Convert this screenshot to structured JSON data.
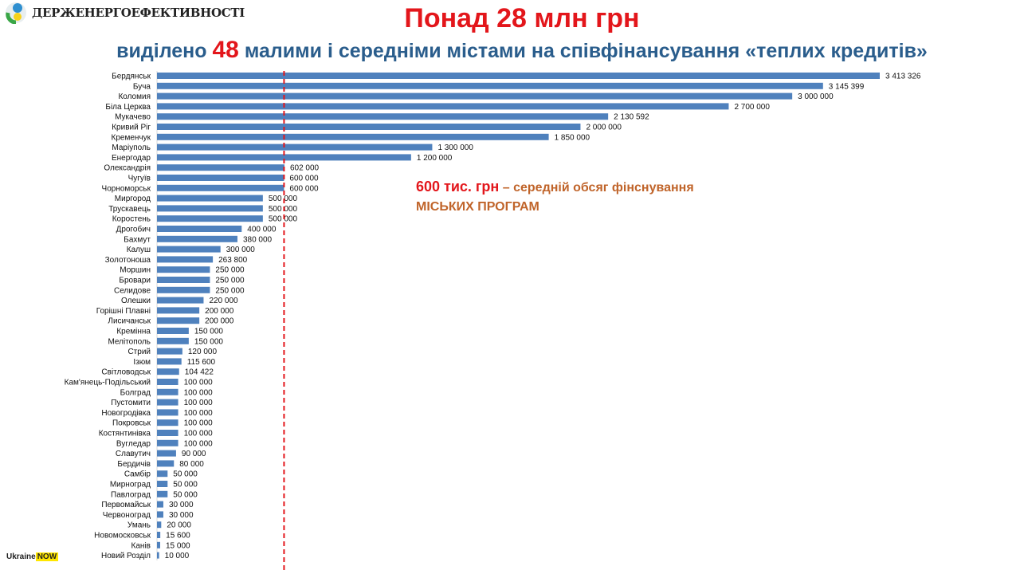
{
  "header": {
    "org": "ДЕРЖЕНЕРГОЕФЕКТИВНОСТІ",
    "title": "Понад 28 млн грн",
    "subtitle_pre": "виділено",
    "subtitle_num": "48",
    "subtitle_post": "малими і середніми містами на співфінансування «теплих кредитів»"
  },
  "note": {
    "amount": "600 тис. грн",
    "text": "– середній обсяг фінснування",
    "text2": "МІСЬКИХ ПРОГРАМ"
  },
  "footer": {
    "brand1": "Ukraine",
    "brand2": "NOW"
  },
  "colors": {
    "bar": "#4f81bd",
    "line": "#e3161b"
  },
  "chart_data": {
    "type": "bar",
    "orientation": "horizontal",
    "title": "",
    "average_line": 600000,
    "xlim": [
      0,
      3500000
    ],
    "categories": [
      "Бердянськ",
      "Буча",
      "Коломия",
      "Біла Церква",
      "Мукачево",
      "Кривий Ріг",
      "Кременчук",
      "Маріуполь",
      "Енергодар",
      "Олександрія",
      "Чугуїв",
      "Чорноморськ",
      "Миргород",
      "Трускавець",
      "Коростень",
      "Дрогобич",
      "Бахмут",
      "Калуш",
      "Золотоноша",
      "Моршин",
      "Бровари",
      "Селидове",
      "Олешки",
      "Горішні Плавні",
      "Лисичанськ",
      "Кремінна",
      "Мелітополь",
      "Стрий",
      "Ізюм",
      "Світловодськ",
      "Кам'янець-Подільський",
      "Болград",
      "Пустомити",
      "Новогродівка",
      "Покровськ",
      "Костянтинівка",
      "Вугледар",
      "Славутич",
      "Бердичів",
      "Самбір",
      "Мирноград",
      "Павлоград",
      "Первомайськ",
      "Червоноград",
      "Умань",
      "Новомосковськ",
      "Канів",
      "Новий Розділ"
    ],
    "values": [
      3413326,
      3145399,
      3000000,
      2700000,
      2130592,
      2000000,
      1850000,
      1300000,
      1200000,
      602000,
      600000,
      600000,
      500000,
      500000,
      500000,
      400000,
      380000,
      300000,
      263800,
      250000,
      250000,
      250000,
      220000,
      200000,
      200000,
      150000,
      150000,
      120000,
      115600,
      104422,
      100000,
      100000,
      100000,
      100000,
      100000,
      100000,
      100000,
      90000,
      80000,
      50000,
      50000,
      50000,
      30000,
      30000,
      20000,
      15600,
      15000,
      10000
    ],
    "labels": [
      "3 413 326",
      "3 145 399",
      "3 000 000",
      "2 700 000",
      "2 130 592",
      "2 000 000",
      "1 850 000",
      "1 300 000",
      "1 200 000",
      "602 000",
      "600 000",
      "600 000",
      "500 000",
      "500 000",
      "500 000",
      "400 000",
      "380 000",
      "300 000",
      "263 800",
      "250 000",
      "250 000",
      "250 000",
      "220 000",
      "200 000",
      "200 000",
      "150 000",
      "150 000",
      "120 000",
      "115 600",
      "104 422",
      "100 000",
      "100 000",
      "100 000",
      "100 000",
      "100 000",
      "100 000",
      "100 000",
      "90 000",
      "80 000",
      "50 000",
      "50 000",
      "50 000",
      "30 000",
      "30 000",
      "20 000",
      "15 600",
      "15 000",
      "10 000"
    ]
  }
}
